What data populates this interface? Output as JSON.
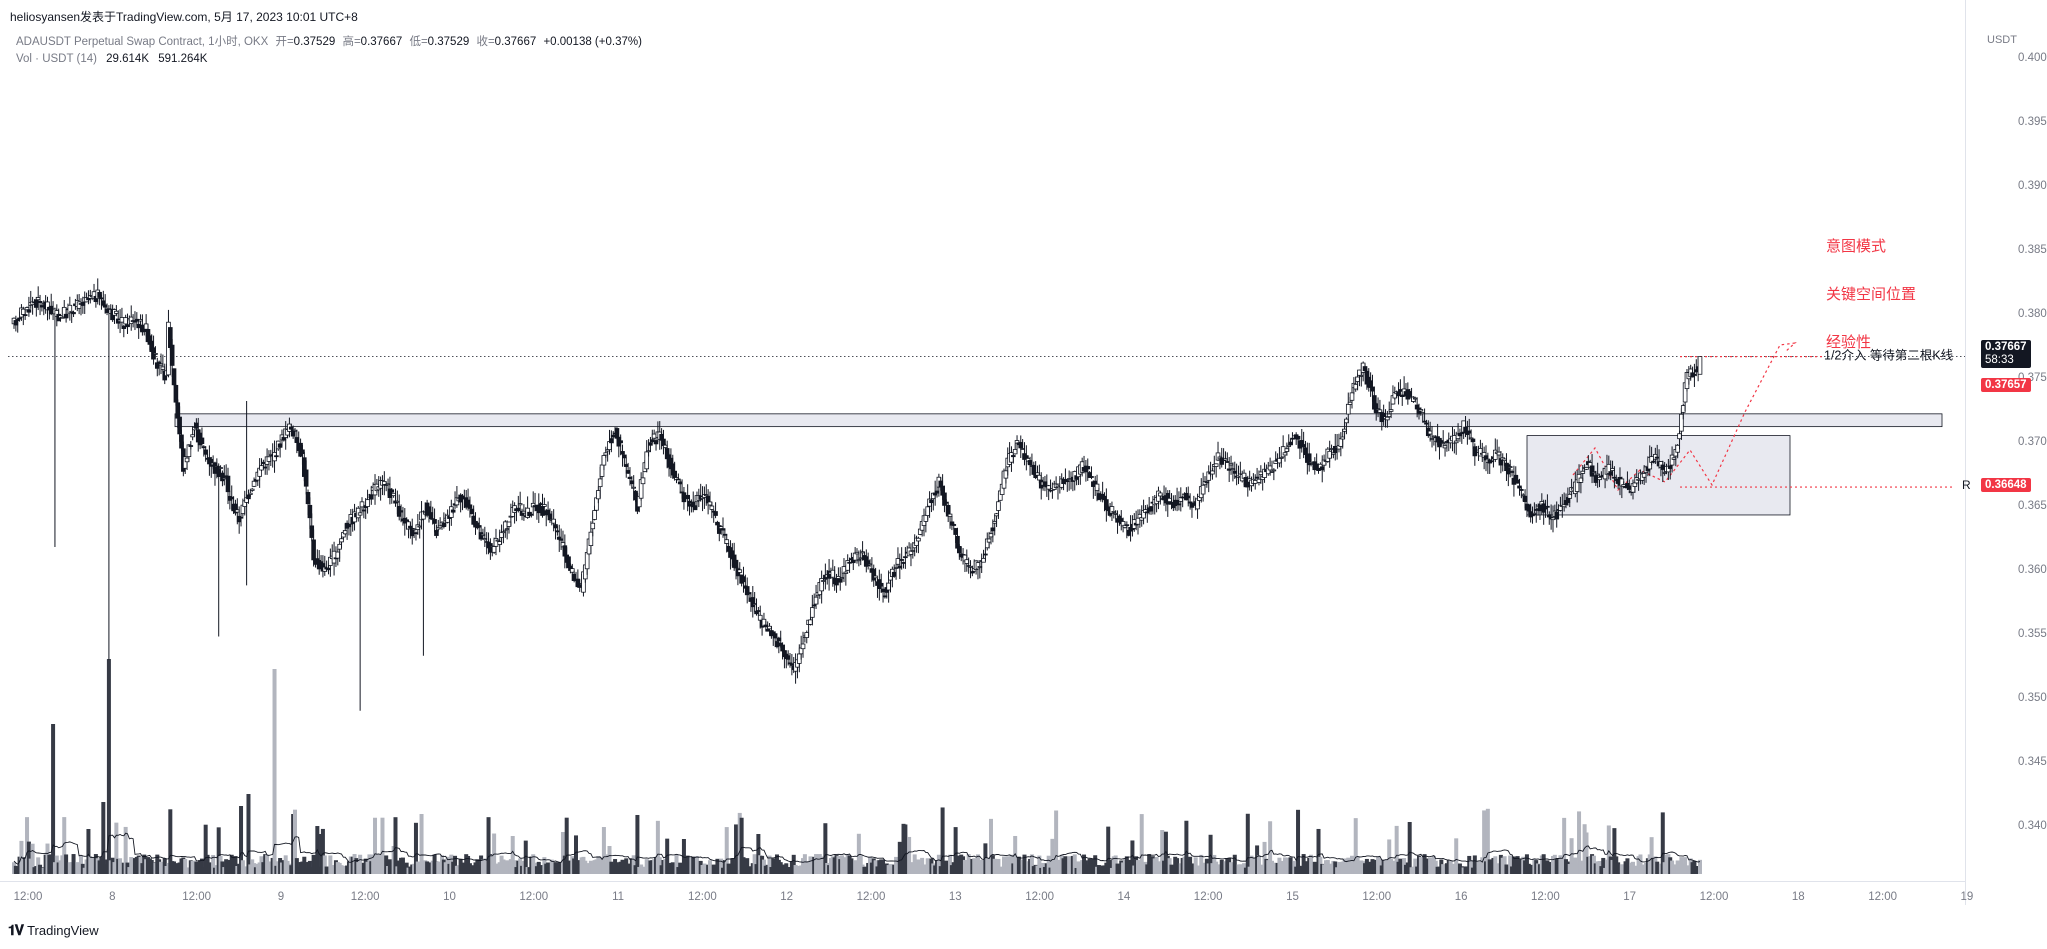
{
  "header": {
    "published": "heliosyansen发表于TradingView.com,  5月 17, 2023 10:01 UTC+8"
  },
  "legend": {
    "symbol": "ADAUSDT Perpetual Swap Contract, 1小时, OKX",
    "open_label": "开=",
    "open": "0.37529",
    "high_label": "高=",
    "high": "0.37667",
    "low_label": "低=",
    "low": "0.37529",
    "close_label": "收=",
    "close": "0.37667",
    "change": "+0.00138 (+0.37%)",
    "vol_label": "Vol · USDT (14)",
    "vol_ma": "29.614K",
    "vol": "591.264K"
  },
  "axis": {
    "unit": "USDT",
    "price_ticks": [
      "0.40000",
      "0.39500",
      "0.39000",
      "0.38500",
      "0.38000",
      "0.37500",
      "0.37000",
      "0.36500",
      "0.36000",
      "0.35500",
      "0.35000",
      "0.34500",
      "0.34000"
    ],
    "time_ticks": [
      "12:00",
      "8",
      "12:00",
      "9",
      "12:00",
      "10",
      "12:00",
      "11",
      "12:00",
      "12",
      "12:00",
      "13",
      "12:00",
      "14",
      "12:00",
      "15",
      "12:00",
      "16",
      "12:00",
      "17",
      "12:00",
      "18",
      "12:00",
      "19"
    ]
  },
  "badges": {
    "last_price": "0.37667",
    "countdown": "58:33",
    "prev_close": "0.37657",
    "r_level": "0.36648",
    "r_label": "R"
  },
  "annotations": {
    "note_lines": [
      "意图模式",
      "关键空间位置",
      "经验性"
    ],
    "entry_text": "1/2介入 等待第二根K线"
  },
  "branding": {
    "logo_text": "TradingView"
  },
  "colors": {
    "up": "#ffffff",
    "down": "#131722",
    "wick": "#131722",
    "vol_up": "#b2b5be",
    "vol_down": "#363a45",
    "zone_fill": "#e8e9f0",
    "zone_border": "#131722",
    "accent_red": "#f23645"
  },
  "chart_data": {
    "type": "candlestick",
    "interval": "1h",
    "ylim": [
      0.338,
      0.4
    ],
    "series_path": [
      [
        0,
        0.379,
        0.3805
      ],
      [
        6,
        0.38,
        0.3812
      ],
      [
        12,
        0.381,
        0.3806
      ],
      [
        18,
        0.3806,
        0.38
      ],
      [
        24,
        0.3798,
        0.3802
      ],
      [
        30,
        0.3802,
        0.3808
      ],
      [
        36,
        0.3806,
        0.3812
      ],
      [
        42,
        0.3812,
        0.3815
      ],
      [
        48,
        0.381,
        0.38
      ],
      [
        54,
        0.38,
        0.3792
      ],
      [
        60,
        0.3792,
        0.3798
      ],
      [
        66,
        0.3796,
        0.3788
      ],
      [
        72,
        0.3788,
        0.376
      ],
      [
        78,
        0.376,
        0.375
      ],
      [
        84,
        0.3792,
        0.376
      ],
      [
        86,
        0.376,
        0.368
      ],
      [
        92,
        0.368,
        0.3712
      ],
      [
        98,
        0.3712,
        0.369
      ],
      [
        104,
        0.369,
        0.3678
      ],
      [
        110,
        0.3678,
        0.367
      ],
      [
        116,
        0.366,
        0.364
      ],
      [
        122,
        0.364,
        0.3664
      ],
      [
        128,
        0.3664,
        0.3682
      ],
      [
        134,
        0.3682,
        0.369
      ],
      [
        140,
        0.3688,
        0.3706
      ],
      [
        146,
        0.3706,
        0.3712
      ],
      [
        150,
        0.3712,
        0.369
      ],
      [
        156,
        0.369,
        0.361
      ],
      [
        162,
        0.361,
        0.36
      ],
      [
        168,
        0.36,
        0.3612
      ],
      [
        174,
        0.3612,
        0.3638
      ],
      [
        180,
        0.3636,
        0.3645
      ],
      [
        186,
        0.3645,
        0.3656
      ],
      [
        192,
        0.3658,
        0.3668
      ],
      [
        198,
        0.3668,
        0.366
      ],
      [
        204,
        0.366,
        0.3638
      ],
      [
        210,
        0.3638,
        0.3628
      ],
      [
        216,
        0.3628,
        0.365
      ],
      [
        222,
        0.365,
        0.363
      ],
      [
        228,
        0.363,
        0.364
      ],
      [
        234,
        0.364,
        0.366
      ],
      [
        240,
        0.366,
        0.3648
      ],
      [
        246,
        0.3648,
        0.3626
      ],
      [
        252,
        0.3626,
        0.3615
      ],
      [
        258,
        0.3615,
        0.363
      ],
      [
        264,
        0.363,
        0.365
      ],
      [
        270,
        0.365,
        0.3644
      ],
      [
        276,
        0.3644,
        0.365
      ],
      [
        282,
        0.365,
        0.3645
      ],
      [
        288,
        0.3645,
        0.3625
      ],
      [
        294,
        0.3625,
        0.36
      ],
      [
        300,
        0.36,
        0.3585
      ],
      [
        306,
        0.3585,
        0.364
      ],
      [
        312,
        0.364,
        0.369
      ],
      [
        318,
        0.369,
        0.371
      ],
      [
        324,
        0.371,
        0.368
      ],
      [
        330,
        0.368,
        0.365
      ],
      [
        336,
        0.365,
        0.3698
      ],
      [
        342,
        0.3698,
        0.3706
      ],
      [
        348,
        0.3706,
        0.368
      ],
      [
        354,
        0.368,
        0.366
      ],
      [
        360,
        0.366,
        0.365
      ],
      [
        366,
        0.365,
        0.366
      ],
      [
        372,
        0.366,
        0.364
      ],
      [
        378,
        0.364,
        0.362
      ],
      [
        384,
        0.362,
        0.36
      ],
      [
        390,
        0.36,
        0.358
      ],
      [
        396,
        0.358,
        0.356
      ],
      [
        402,
        0.356,
        0.355
      ],
      [
        408,
        0.355,
        0.354
      ],
      [
        414,
        0.354,
        0.352
      ],
      [
        420,
        0.352,
        0.355
      ],
      [
        426,
        0.355,
        0.358
      ],
      [
        432,
        0.358,
        0.36
      ],
      [
        438,
        0.36,
        0.359
      ],
      [
        444,
        0.359,
        0.3608
      ],
      [
        450,
        0.3608,
        0.3612
      ],
      [
        456,
        0.3612,
        0.36
      ],
      [
        462,
        0.36,
        0.358
      ],
      [
        468,
        0.358,
        0.36
      ],
      [
        474,
        0.36,
        0.3612
      ],
      [
        480,
        0.3612,
        0.362
      ],
      [
        486,
        0.362,
        0.365
      ],
      [
        492,
        0.365,
        0.3668
      ],
      [
        498,
        0.3668,
        0.364
      ],
      [
        504,
        0.364,
        0.361
      ],
      [
        510,
        0.361,
        0.36
      ],
      [
        516,
        0.36,
        0.361
      ],
      [
        522,
        0.361,
        0.364
      ],
      [
        528,
        0.364,
        0.368
      ],
      [
        534,
        0.368,
        0.37
      ],
      [
        540,
        0.37,
        0.3685
      ],
      [
        546,
        0.3685,
        0.367
      ],
      [
        552,
        0.367,
        0.3662
      ],
      [
        558,
        0.3662,
        0.3668
      ],
      [
        564,
        0.3668,
        0.3672
      ],
      [
        570,
        0.3672,
        0.3682
      ],
      [
        576,
        0.3682,
        0.3665
      ],
      [
        582,
        0.3665,
        0.365
      ],
      [
        588,
        0.365,
        0.364
      ],
      [
        594,
        0.364,
        0.3632
      ],
      [
        600,
        0.3632,
        0.364
      ],
      [
        606,
        0.364,
        0.365
      ],
      [
        612,
        0.365,
        0.366
      ],
      [
        618,
        0.366,
        0.3652
      ],
      [
        624,
        0.3652,
        0.3658
      ],
      [
        630,
        0.3658,
        0.365
      ],
      [
        636,
        0.365,
        0.3672
      ],
      [
        642,
        0.3672,
        0.3688
      ],
      [
        648,
        0.3688,
        0.368
      ],
      [
        654,
        0.368,
        0.3672
      ],
      [
        660,
        0.3672,
        0.3668
      ],
      [
        666,
        0.3668,
        0.3674
      ],
      [
        672,
        0.3674,
        0.3682
      ],
      [
        678,
        0.3682,
        0.3694
      ],
      [
        684,
        0.3694,
        0.3706
      ],
      [
        690,
        0.3706,
        0.3688
      ],
      [
        696,
        0.3688,
        0.3678
      ],
      [
        702,
        0.3678,
        0.3692
      ],
      [
        708,
        0.3692,
        0.37
      ],
      [
        714,
        0.37,
        0.374
      ],
      [
        720,
        0.374,
        0.376
      ],
      [
        726,
        0.376,
        0.373
      ],
      [
        732,
        0.373,
        0.3716
      ],
      [
        738,
        0.3716,
        0.374
      ],
      [
        744,
        0.374,
        0.3738
      ],
      [
        750,
        0.3738,
        0.3726
      ],
      [
        756,
        0.3726,
        0.3705
      ],
      [
        762,
        0.3705,
        0.3698
      ],
      [
        768,
        0.3698,
        0.37
      ],
      [
        774,
        0.37,
        0.3712
      ],
      [
        780,
        0.3712,
        0.3694
      ],
      [
        786,
        0.3694,
        0.3686
      ],
      [
        792,
        0.3686,
        0.369
      ],
      [
        798,
        0.369,
        0.368
      ],
      [
        804,
        0.368,
        0.3662
      ],
      [
        810,
        0.3662,
        0.3645
      ],
      [
        816,
        0.3645,
        0.3652
      ],
      [
        822,
        0.3652,
        0.364
      ],
      [
        828,
        0.364,
        0.3654
      ],
      [
        834,
        0.3654,
        0.3664
      ],
      [
        840,
        0.3664,
        0.3684
      ],
      [
        846,
        0.3684,
        0.367
      ],
      [
        852,
        0.367,
        0.3678
      ],
      [
        858,
        0.3678,
        0.3668
      ],
      [
        864,
        0.3668,
        0.3662
      ],
      [
        870,
        0.3662,
        0.3674
      ],
      [
        876,
        0.3674,
        0.3688
      ],
      [
        882,
        0.3688,
        0.3676
      ],
      [
        888,
        0.3676,
        0.369
      ],
      [
        894,
        0.369,
        0.3752
      ],
      [
        900,
        0.3752,
        0.3758
      ],
      [
        906,
        0.3758,
        0.3768
      ]
    ],
    "volume_stream_seed": 17,
    "key_levels": {
      "resistance_zone": [
        0.3712,
        0.3722
      ],
      "range_box": [
        0.3643,
        0.3705
      ],
      "r": 0.36648,
      "last": 0.37667,
      "target_line": 0.37667
    }
  }
}
